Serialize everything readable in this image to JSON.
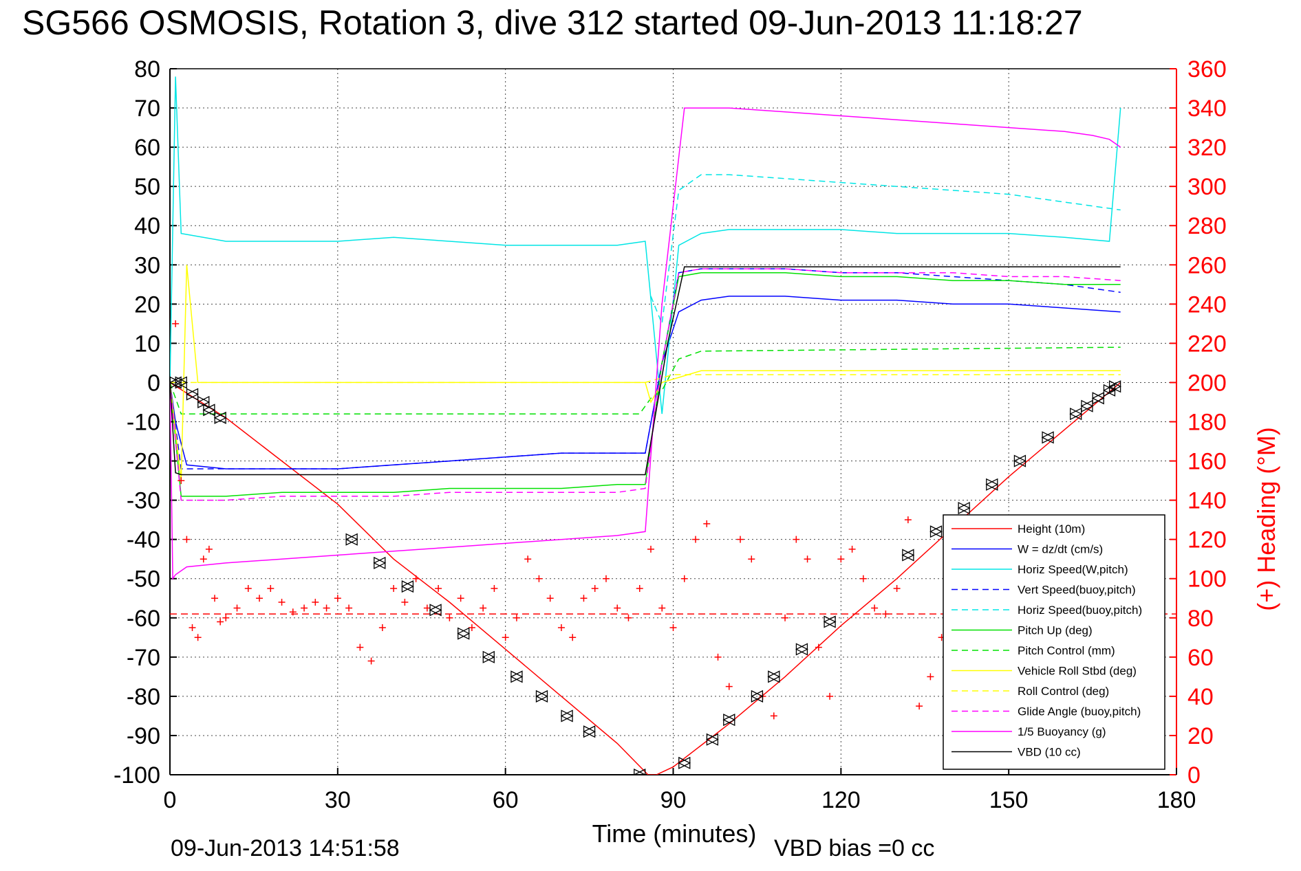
{
  "chart_data": {
    "type": "line",
    "title": "SG566 OSMOSIS, Rotation 3, dive 312 started 09-Jun-2013 11:18:27",
    "xlabel": "Time (minutes)",
    "ylabel_right": "(+) Heading (°M)",
    "footer_left": "09-Jun-2013 14:51:58",
    "footer_right": "VBD bias =0 cc",
    "xlim": [
      0,
      180
    ],
    "ylim": [
      -100,
      80
    ],
    "ylim_right": [
      0,
      360
    ],
    "xticks": [
      0,
      30,
      60,
      90,
      120,
      150,
      180
    ],
    "yticks": [
      80,
      70,
      60,
      50,
      40,
      30,
      20,
      10,
      0,
      -10,
      -20,
      -30,
      -40,
      -50,
      -60,
      -70,
      -80,
      -90,
      -100
    ],
    "yticks_right": [
      360,
      340,
      320,
      300,
      280,
      260,
      240,
      220,
      200,
      180,
      160,
      140,
      120,
      100,
      80,
      60,
      40,
      20,
      0
    ],
    "grid": true,
    "legend_position": "bottom-right",
    "colors": {
      "axis": "#000000",
      "right_axis": "#ff0000",
      "grid": "#444444"
    },
    "series": [
      {
        "name": "Height (10m)",
        "color": "#ff0000",
        "style": "solid",
        "x": [
          0,
          10,
          20,
          30,
          40,
          50,
          60,
          70,
          80,
          85.5,
          87,
          90,
          100,
          110,
          120,
          130,
          140,
          150,
          160,
          170
        ],
        "values": [
          0,
          -9,
          -20,
          -31,
          -45,
          -56,
          -68,
          -80,
          -92,
          -100,
          -100,
          -98,
          -87,
          -75,
          -62,
          -50,
          -37,
          -24,
          -12,
          0
        ]
      },
      {
        "name": "W = dz/dt (cm/s)",
        "color": "#0000ff",
        "style": "solid",
        "x": [
          0,
          1,
          3,
          10,
          20,
          30,
          40,
          50,
          60,
          70,
          80,
          85,
          88,
          91,
          95,
          100,
          110,
          120,
          130,
          140,
          150,
          160,
          170
        ],
        "values": [
          0,
          -10,
          -21,
          -22,
          -22,
          -22,
          -21,
          -20,
          -19,
          -18,
          -18,
          -18,
          5,
          18,
          21,
          22,
          22,
          21,
          21,
          20,
          20,
          19,
          18
        ]
      },
      {
        "name": "Horiz Speed(W,pitch)",
        "color": "#00e5e5",
        "style": "solid",
        "x": [
          0,
          1,
          2,
          10,
          20,
          30,
          40,
          50,
          60,
          70,
          80,
          85,
          88,
          91,
          95,
          100,
          110,
          120,
          130,
          140,
          150,
          160,
          168,
          170
        ],
        "values": [
          0,
          78,
          38,
          36,
          36,
          36,
          37,
          36,
          35,
          35,
          35,
          36,
          -8,
          35,
          38,
          39,
          39,
          39,
          38,
          38,
          38,
          37,
          36,
          70
        ]
      },
      {
        "name": "Vert Speed(buoy,pitch)",
        "color": "#0000ff",
        "style": "dashed",
        "x": [
          0,
          2,
          10,
          20,
          30,
          40,
          50,
          60,
          70,
          80,
          85,
          88,
          91,
          95,
          100,
          110,
          120,
          130,
          140,
          150,
          160,
          170
        ],
        "values": [
          0,
          -22,
          -22,
          -22,
          -22,
          -21,
          -20,
          -19,
          -18,
          -18,
          -18,
          5,
          28,
          29,
          29,
          29,
          28,
          28,
          27,
          26,
          25,
          23
        ]
      },
      {
        "name": "Horiz Speed(buoy,pitch)",
        "color": "#00e5e5",
        "style": "dashed",
        "x": [
          86,
          88,
          91,
          95,
          100,
          110,
          120,
          130,
          140,
          150,
          160,
          170
        ],
        "values": [
          22,
          15,
          49,
          53,
          53,
          52,
          51,
          50,
          49,
          48,
          46,
          44
        ]
      },
      {
        "name": "Pitch Up (deg)",
        "color": "#00e000",
        "style": "solid",
        "x": [
          0,
          2,
          10,
          20,
          30,
          40,
          50,
          60,
          70,
          80,
          85,
          88,
          91,
          95,
          100,
          110,
          120,
          130,
          140,
          150,
          160,
          170
        ],
        "values": [
          0,
          -29,
          -29,
          -28,
          -28,
          -28,
          -27,
          -27,
          -27,
          -26,
          -26,
          5,
          27,
          28,
          28,
          28,
          27,
          27,
          26,
          26,
          25,
          25
        ]
      },
      {
        "name": "Pitch Control (mm)",
        "color": "#00e000",
        "style": "dashed",
        "x": [
          0,
          2,
          84,
          86,
          88,
          91,
          95,
          170
        ],
        "values": [
          0,
          -8,
          -8,
          -4,
          -2,
          6,
          8,
          9
        ]
      },
      {
        "name": "Vehicle Roll Stbd (deg)",
        "color": "#ffff00",
        "style": "solid",
        "x": [
          0,
          2,
          3,
          5,
          10,
          30,
          60,
          85,
          86,
          88,
          95,
          120,
          170
        ],
        "values": [
          0,
          -25,
          30,
          0,
          0,
          0,
          0,
          0,
          -5,
          0,
          3,
          3,
          3
        ]
      },
      {
        "name": "Roll Control (deg)",
        "color": "#ffff00",
        "style": "dashed",
        "x": [
          0,
          5,
          40,
          85,
          90,
          95,
          170
        ],
        "values": [
          0,
          0,
          0,
          0,
          2,
          2,
          2
        ]
      },
      {
        "name": "Glide Angle (buoy,pitch)",
        "color": "#ff00ff",
        "style": "dashed",
        "x": [
          0,
          2,
          10,
          20,
          30,
          40,
          50,
          60,
          70,
          80,
          85,
          88,
          91,
          95,
          100,
          110,
          120,
          130,
          140,
          150,
          160,
          170
        ],
        "values": [
          0,
          -30,
          -30,
          -29,
          -29,
          -29,
          -28,
          -28,
          -28,
          -28,
          -27,
          5,
          28,
          29,
          29,
          29,
          28,
          28,
          28,
          27,
          27,
          26
        ]
      },
      {
        "name": "1/5 Buoyancy (g)",
        "color": "#ff00ff",
        "style": "solid",
        "x": [
          0,
          0.5,
          1,
          3,
          10,
          20,
          30,
          40,
          50,
          60,
          70,
          80,
          85,
          88,
          92,
          95,
          100,
          110,
          120,
          130,
          140,
          150,
          160,
          165,
          168,
          170
        ],
        "values": [
          0,
          -50,
          -49,
          -47,
          -46,
          -45,
          -44,
          -43,
          -42,
          -41,
          -40,
          -39,
          -38,
          20,
          70,
          70,
          70,
          69,
          68,
          67,
          66,
          65,
          64,
          63,
          62,
          60
        ]
      },
      {
        "name": "VBD (10 cc)",
        "color": "#000000",
        "style": "solid",
        "x": [
          0,
          1,
          2,
          85,
          89,
          92,
          170
        ],
        "values": [
          0,
          -23,
          -23.5,
          -23.5,
          10,
          29.5,
          29.5
        ]
      }
    ],
    "heading": {
      "color": "#ff0000",
      "marker": "+",
      "axis": "right",
      "mean": 82,
      "x": [
        1,
        2,
        3,
        4,
        5,
        6,
        7,
        8,
        9,
        10,
        12,
        14,
        16,
        18,
        20,
        22,
        24,
        26,
        28,
        30,
        32,
        34,
        36,
        38,
        40,
        42,
        44,
        46,
        48,
        50,
        52,
        54,
        56,
        58,
        60,
        62,
        64,
        66,
        68,
        70,
        72,
        74,
        76,
        78,
        80,
        82,
        84,
        86,
        88,
        90,
        92,
        94,
        96,
        98,
        100,
        102,
        104,
        106,
        108,
        110,
        112,
        114,
        116,
        118,
        120,
        122,
        124,
        126,
        128,
        130,
        132,
        134,
        136,
        138,
        140,
        142,
        144,
        146,
        148,
        150,
        152,
        154,
        156,
        158,
        160,
        162,
        164,
        166,
        168
      ],
      "values": [
        230,
        150,
        120,
        75,
        70,
        110,
        115,
        90,
        78,
        80,
        85,
        95,
        90,
        95,
        88,
        83,
        85,
        88,
        85,
        90,
        85,
        65,
        58,
        75,
        95,
        88,
        100,
        85,
        95,
        80,
        90,
        75,
        85,
        95,
        70,
        80,
        110,
        100,
        90,
        75,
        70,
        90,
        95,
        100,
        85,
        80,
        95,
        115,
        85,
        75,
        100,
        120,
        128,
        60,
        45,
        120,
        110,
        40,
        30,
        80,
        120,
        110,
        65,
        40,
        110,
        115,
        100,
        85,
        82,
        95,
        130,
        35,
        50,
        70,
        60,
        40,
        30,
        45,
        70,
        80,
        95,
        85,
        70,
        60,
        75,
        90,
        80,
        70,
        60
      ]
    },
    "markers_triangles": {
      "color": "#000000",
      "x": [
        1,
        2,
        4,
        6,
        7,
        9,
        32.5,
        37.5,
        42.5,
        47.5,
        52.5,
        57,
        62,
        66.5,
        71,
        75,
        84,
        92,
        97,
        100,
        105,
        108,
        113,
        118,
        132,
        137,
        142,
        147,
        152,
        157,
        162,
        164,
        166,
        168,
        169
      ],
      "values": [
        0,
        0,
        -3,
        -5,
        -7,
        -9,
        -40,
        -46,
        -52,
        -58,
        -64,
        -70,
        -75,
        -80,
        -85,
        -89,
        -100,
        -97,
        -91,
        -86,
        -80,
        -75,
        -68,
        -61,
        -44,
        -38,
        -32,
        -26,
        -20,
        -14,
        -8,
        -6,
        -4,
        -2,
        -1
      ]
    }
  }
}
